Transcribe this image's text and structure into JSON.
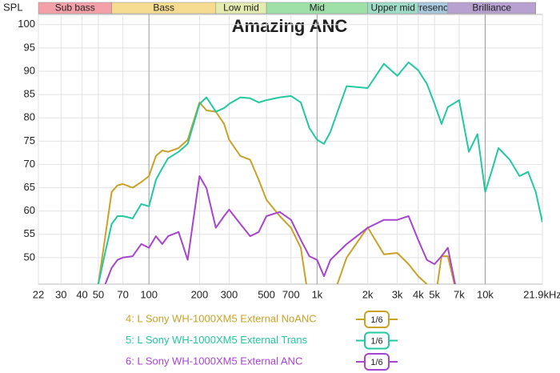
{
  "chart_data": {
    "type": "line",
    "title": "Amazing ANC",
    "y_label": "SPL",
    "log_x": true,
    "grid": true,
    "xlim": [
      22,
      21900
    ],
    "ylim": [
      44.3,
      102.2
    ],
    "yticks": [
      50,
      55,
      60,
      65,
      70,
      75,
      80,
      85,
      90,
      95,
      100
    ],
    "xticks": [
      22,
      30,
      40,
      50,
      70,
      100,
      200,
      300,
      500,
      700,
      {
        "value": 1000,
        "label": "1k"
      },
      {
        "value": 2000,
        "label": "2k"
      },
      {
        "value": 3000,
        "label": "3k"
      },
      {
        "value": 4000,
        "label": "4k"
      },
      {
        "value": 5000,
        "label": "5k"
      },
      {
        "value": 7000,
        "label": "7k"
      },
      {
        "value": 10000,
        "label": "10k"
      },
      {
        "value": 21900,
        "label": "21.9kHz"
      }
    ],
    "bands": [
      {
        "name": "Sub bass",
        "from": 20,
        "to": 60,
        "color": "#f4a0a8"
      },
      {
        "name": "Bass",
        "from": 60,
        "to": 250,
        "color": "#f6dc90"
      },
      {
        "name": "Low mid",
        "from": 250,
        "to": 500,
        "color": "#e4ecb0"
      },
      {
        "name": "Mid",
        "from": 500,
        "to": 2000,
        "color": "#9ee0a8"
      },
      {
        "name": "Upper mid",
        "from": 2000,
        "to": 4000,
        "color": "#9edcc8"
      },
      {
        "name": "Presence",
        "from": 4000,
        "to": 6000,
        "color": "#a8c8e0"
      },
      {
        "name": "Brilliance",
        "from": 6000,
        "to": 20000,
        "color": "#b8a0d0"
      }
    ],
    "x": [
      45,
      50,
      55,
      60,
      65,
      70,
      80,
      90,
      100,
      110,
      120,
      130,
      150,
      170,
      200,
      220,
      250,
      280,
      300,
      350,
      400,
      450,
      500,
      600,
      700,
      800,
      900,
      1000,
      1100,
      1200,
      1500,
      2000,
      2500,
      3000,
      3500,
      4000,
      4500,
      5000,
      5500,
      6000,
      7000,
      8000,
      9000,
      10000,
      11000,
      12000,
      14000,
      16000,
      18000,
      20000,
      21900
    ],
    "series": [
      {
        "name": "4: L Sony WH-1000XM5 External NoANC",
        "color": "#c9a227",
        "smoothing": "1/6",
        "values": [
          40,
          44.3,
          54.6,
          64.1,
          65.5,
          65.8,
          65,
          66.2,
          67.5,
          71.8,
          73,
          72.7,
          73.5,
          75.3,
          83.3,
          81.6,
          81.3,
          78.7,
          75.3,
          71.8,
          71,
          66.7,
          62.4,
          58.9,
          56.4,
          52.1,
          40,
          44,
          40,
          40,
          50,
          56.5,
          50.7,
          51,
          48.6,
          46,
          44.3,
          40,
          50.3,
          50.3,
          40,
          null,
          null,
          null,
          null,
          null,
          null,
          null,
          null,
          null,
          null
        ]
      },
      {
        "name": "5: L Sony WH-1000XM5 External Trans",
        "color": "#22c9a0",
        "smoothing": "1/6",
        "values": [
          40,
          44.3,
          51.2,
          57.2,
          58.9,
          58.9,
          58.4,
          61.5,
          61,
          66.7,
          69.2,
          71.3,
          72.7,
          74.4,
          83,
          84.4,
          81.3,
          82.1,
          83,
          84.4,
          84.2,
          83.3,
          83.8,
          84.4,
          84.7,
          83.3,
          77.8,
          75.3,
          74.4,
          77,
          86.8,
          86.4,
          91.6,
          89,
          91.9,
          90.2,
          87.3,
          83,
          78.7,
          82.3,
          83.8,
          72.7,
          76.5,
          64.1,
          68.9,
          73.5,
          71,
          67.5,
          68.4,
          64.1,
          57.6
        ]
      },
      {
        "name": "6: L Sony WH-1000XM5 External ANC",
        "color": "#a845d0",
        "smoothing": "1/6",
        "values": [
          null,
          40,
          44.3,
          47.8,
          49.5,
          50,
          50.3,
          52.9,
          52.1,
          54.6,
          52.9,
          54.6,
          55.5,
          49.5,
          67.5,
          64.9,
          56.4,
          58.9,
          60.3,
          57.2,
          54.6,
          55.5,
          58.9,
          59.8,
          58.1,
          53.8,
          50.3,
          49.5,
          46,
          49.5,
          52.9,
          56.4,
          58.1,
          58.1,
          58.9,
          53.8,
          49.5,
          48.6,
          50.3,
          52.1,
          40,
          null,
          null,
          null,
          null,
          null,
          null,
          null,
          null,
          null,
          null
        ]
      }
    ]
  }
}
